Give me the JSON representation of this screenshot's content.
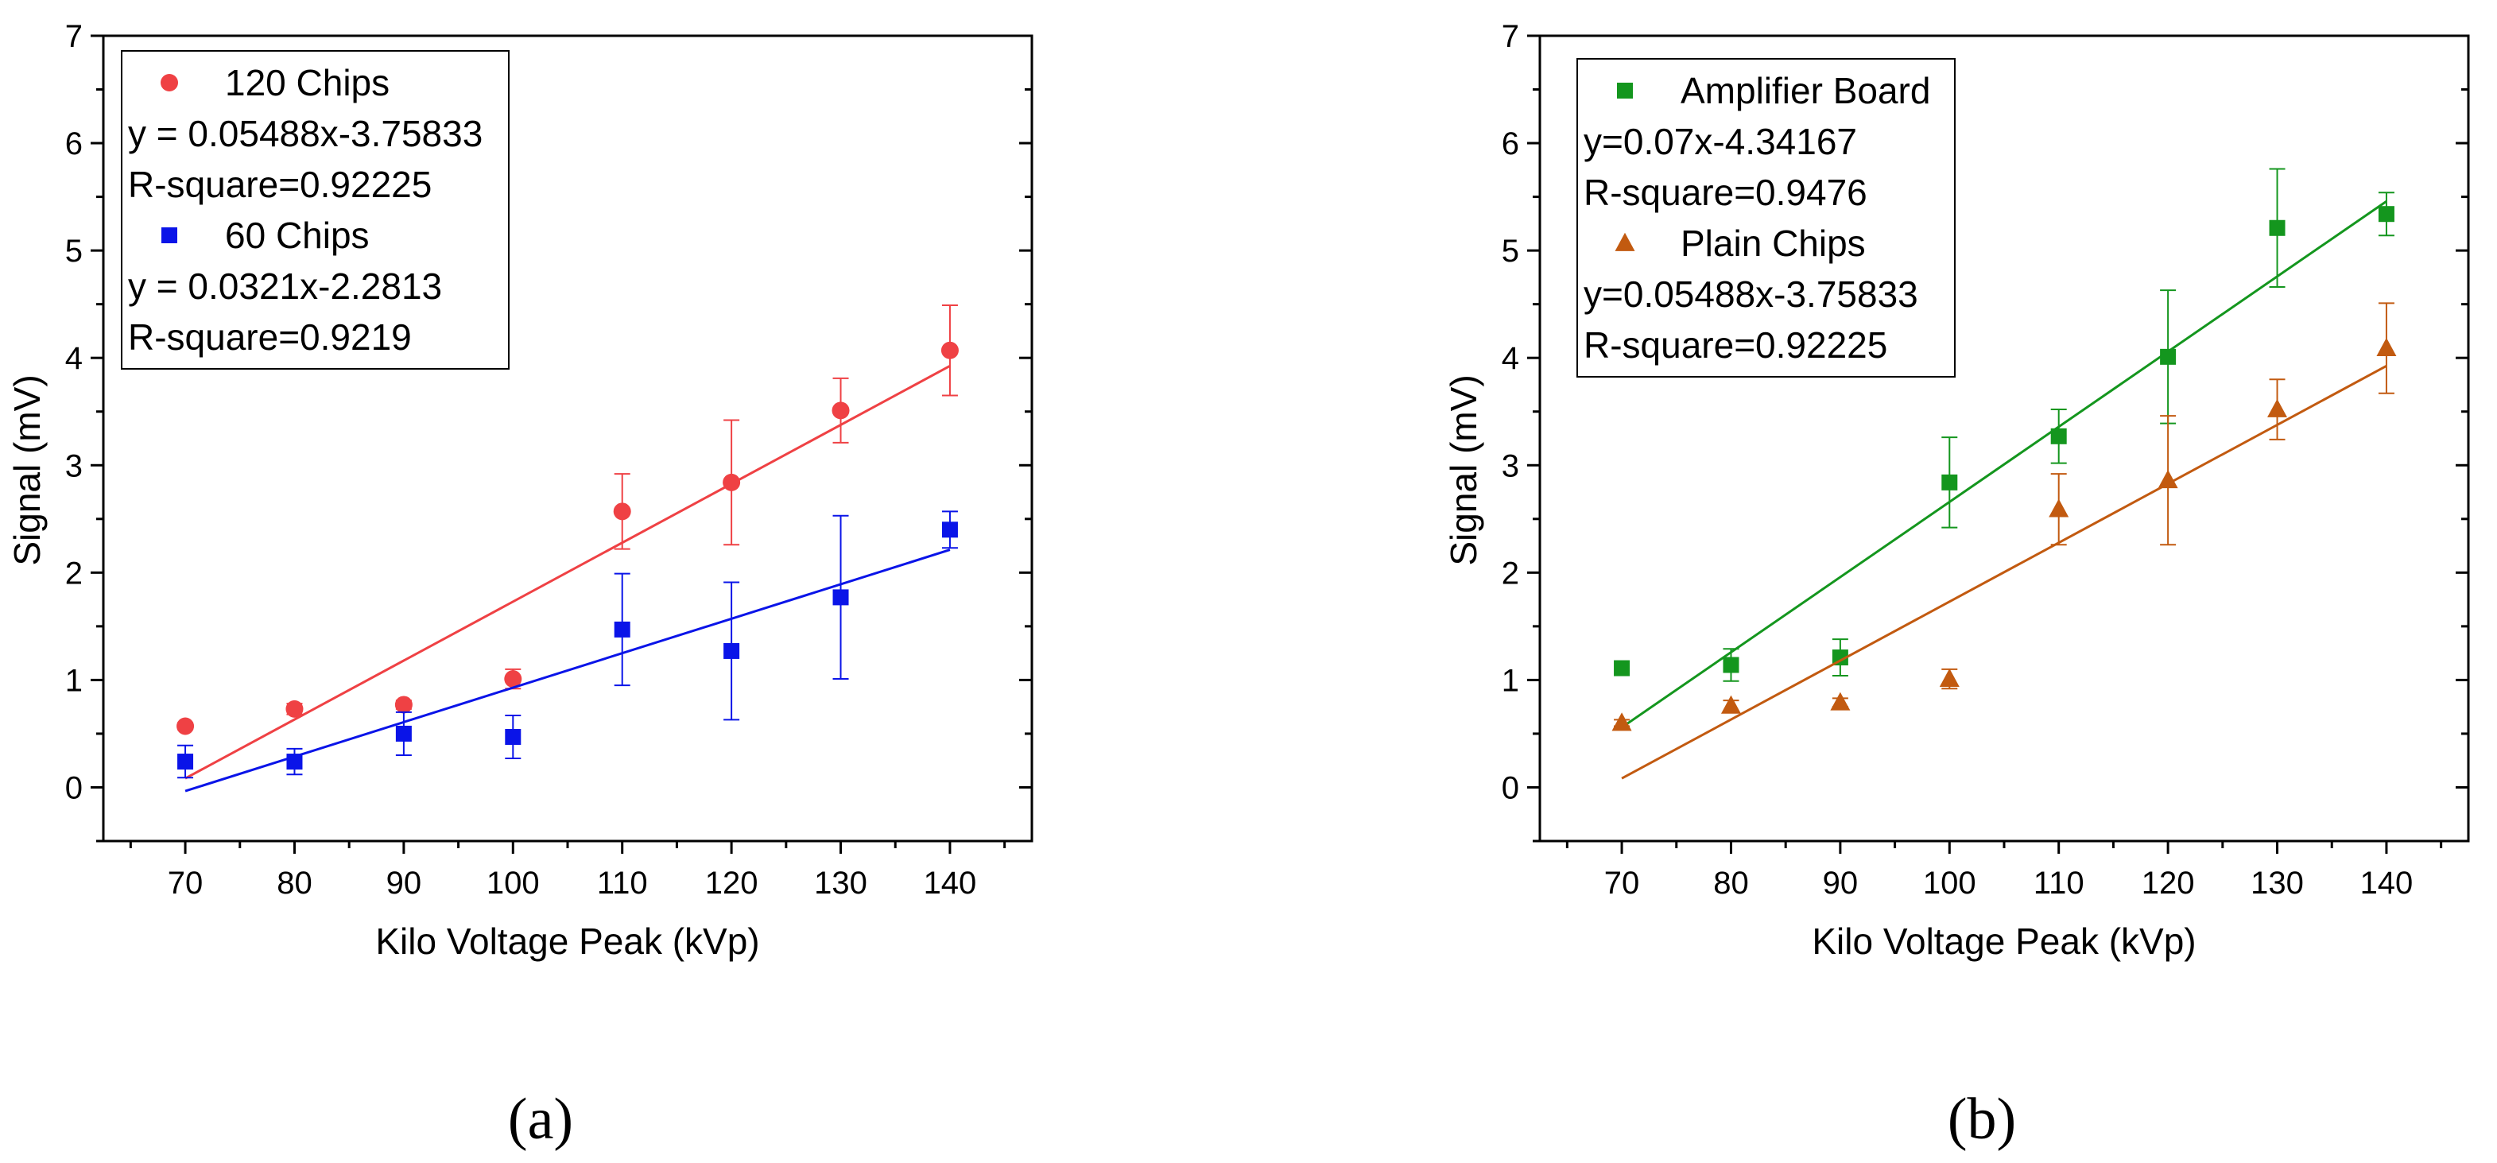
{
  "chart_data": [
    {
      "type": "scatter",
      "panel_label": "(a)",
      "xlabel": "Kilo Voltage Peak (kVp)",
      "ylabel": "Signal (mV)",
      "xlim": [
        62.5,
        147.5
      ],
      "ylim": [
        -0.5,
        7
      ],
      "x_ticks": [
        70,
        80,
        90,
        100,
        110,
        120,
        130,
        140
      ],
      "y_ticks": [
        0,
        1,
        2,
        3,
        4,
        5,
        6,
        7
      ],
      "grid": false,
      "legend_position": "top-left",
      "series": [
        {
          "name": "120 Chips",
          "marker": "circle",
          "color": "#ef4144",
          "x": [
            70,
            80,
            90,
            100,
            110,
            120,
            130,
            140
          ],
          "y": [
            0.57,
            0.73,
            0.77,
            1.01,
            2.57,
            2.84,
            3.51,
            4.07
          ],
          "error": [
            0.03,
            0.05,
            0.04,
            0.09,
            0.35,
            0.58,
            0.3,
            0.42
          ],
          "fit": {
            "equation": "y = 0.05488x-3.75833",
            "r_square": "R-square=0.92225",
            "slope": 0.05488,
            "intercept": -3.75833,
            "x_range": [
              70,
              140
            ]
          }
        },
        {
          "name": "60 Chips",
          "marker": "square",
          "color": "#0a14e8",
          "x": [
            70,
            80,
            90,
            100,
            110,
            120,
            130,
            140
          ],
          "y": [
            0.24,
            0.24,
            0.5,
            0.47,
            1.47,
            1.27,
            1.77,
            2.4
          ],
          "error": [
            0.15,
            0.12,
            0.2,
            0.2,
            0.52,
            0.64,
            0.76,
            0.17
          ],
          "fit": {
            "equation": "y = 0.0321x-2.2813",
            "r_square": "R-square=0.9219",
            "slope": 0.0321,
            "intercept": -2.2813,
            "x_range": [
              70,
              140
            ]
          }
        }
      ]
    },
    {
      "type": "scatter",
      "panel_label": "(b)",
      "xlabel": "Kilo Voltage Peak (kVp)",
      "ylabel": "Signal (mV)",
      "xlim": [
        62.5,
        147.5
      ],
      "ylim": [
        -0.5,
        7
      ],
      "x_ticks": [
        70,
        80,
        90,
        100,
        110,
        120,
        130,
        140
      ],
      "y_ticks": [
        0,
        1,
        2,
        3,
        4,
        5,
        6,
        7
      ],
      "grid": false,
      "legend_position": "top-left",
      "series": [
        {
          "name": "Amplifier Board",
          "marker": "square",
          "color": "#14961e",
          "x": [
            70,
            80,
            90,
            100,
            110,
            120,
            130,
            140
          ],
          "y": [
            1.11,
            1.14,
            1.21,
            2.84,
            3.27,
            4.01,
            5.21,
            5.34
          ],
          "error": [
            0.0,
            0.15,
            0.17,
            0.42,
            0.25,
            0.62,
            0.55,
            0.2
          ],
          "fit": {
            "equation": "y=0.07x-4.34167",
            "r_square": "R-square=0.9476",
            "slope": 0.07,
            "intercept": -4.34167,
            "x_range": [
              70,
              140
            ]
          }
        },
        {
          "name": "Plain Chips",
          "marker": "triangle",
          "color": "#c25a10",
          "x": [
            70,
            80,
            90,
            100,
            110,
            120,
            130,
            140
          ],
          "y": [
            0.6,
            0.76,
            0.79,
            1.01,
            2.59,
            2.86,
            3.52,
            4.09
          ],
          "error": [
            0.03,
            0.05,
            0.04,
            0.09,
            0.33,
            0.6,
            0.28,
            0.42
          ],
          "fit": {
            "equation": "y=0.05488x-3.75833",
            "r_square": "R-square=0.92225",
            "slope": 0.05488,
            "intercept": -3.75833,
            "x_range": [
              70,
              140
            ]
          }
        }
      ]
    }
  ]
}
